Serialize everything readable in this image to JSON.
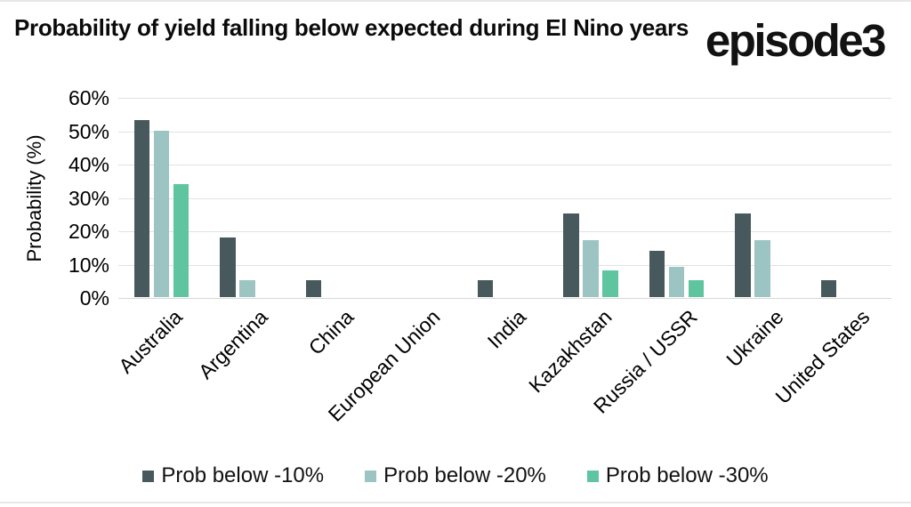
{
  "header": {
    "logo": "episode3"
  },
  "chart_data": {
    "type": "bar",
    "title": "Probability of yield falling below expected during El Nino years",
    "xlabel": "",
    "ylabel": "Probability (%)",
    "ylim": [
      0,
      60
    ],
    "ytick_step": 10,
    "ytick_labels": [
      "0%",
      "10%",
      "20%",
      "30%",
      "40%",
      "50%",
      "60%"
    ],
    "grid": true,
    "legend_position": "bottom",
    "categories": [
      "Australia",
      "Argentina",
      "China",
      "European Union",
      "India",
      "Kazakhstan",
      "Russia / USSR",
      "Ukraine",
      "United States"
    ],
    "series": [
      {
        "name": "Prob below -10%",
        "color": "#47595C",
        "values": [
          53,
          18,
          5,
          0,
          5,
          25,
          14,
          25,
          5
        ]
      },
      {
        "name": "Prob below -20%",
        "color": "#9CC4C2",
        "values": [
          50,
          5,
          0,
          0,
          0,
          17,
          9,
          17,
          0
        ]
      },
      {
        "name": "Prob below -30%",
        "color": "#5FC5A0",
        "values": [
          34,
          0,
          0,
          0,
          0,
          8,
          5,
          0,
          0
        ]
      }
    ]
  }
}
